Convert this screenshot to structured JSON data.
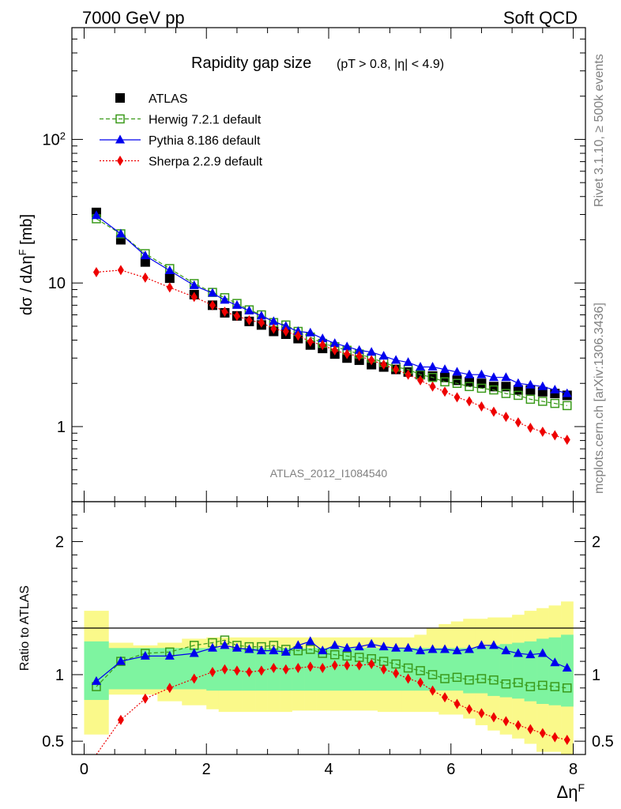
{
  "header": {
    "left": "7000 GeV pp",
    "right": "Soft QCD"
  },
  "side_labels": {
    "rivet": "Rivet 3.1.10, ≥ 500k events",
    "mcplots": "mcplots.cern.ch [arXiv:1306.3436]"
  },
  "watermark": "ATLAS_2012_I1084540",
  "colors": {
    "atlas": "#000000",
    "herwig": "#3a9a1a",
    "pythia": "#0000ee",
    "sherpa": "#ee0000",
    "band_inner": "#7ef4a0",
    "band_outer": "#faf98a"
  },
  "chart_data": [
    {
      "type": "scatter",
      "title": "Rapidity gap size",
      "subtitle": "(pT > 0.8, |η| < 4.9)",
      "ylabel": "dσ / dΔη^F [mb]",
      "yscale": "log",
      "ylim": [
        0.3,
        600
      ],
      "xlim": [
        -0.2,
        8.2
      ],
      "yticks": [
        "1",
        "10",
        "10^2"
      ],
      "legend_position": "top-left",
      "x": [
        0.2,
        0.6,
        1.0,
        1.4,
        1.8,
        2.1,
        2.3,
        2.5,
        2.7,
        2.9,
        3.1,
        3.3,
        3.5,
        3.7,
        3.9,
        4.1,
        4.3,
        4.5,
        4.7,
        4.9,
        5.1,
        5.3,
        5.5,
        5.7,
        5.9,
        6.1,
        6.3,
        6.5,
        6.7,
        6.9,
        7.1,
        7.3,
        7.5,
        7.7,
        7.9
      ],
      "series": [
        {
          "name": "ATLAS",
          "marker": "square-filled",
          "values": [
            31,
            20,
            14,
            10.8,
            8.3,
            7.0,
            6.2,
            5.9,
            5.4,
            5.1,
            4.6,
            4.4,
            4.1,
            3.7,
            3.5,
            3.2,
            3.0,
            2.9,
            2.7,
            2.6,
            2.5,
            2.4,
            2.3,
            2.25,
            2.2,
            2.1,
            2.05,
            2.0,
            1.9,
            1.9,
            1.8,
            1.8,
            1.75,
            1.7,
            1.65
          ]
        },
        {
          "name": "Herwig 7.2.1 default",
          "marker": "square-open",
          "line": "dashed",
          "values": [
            28,
            22,
            16,
            12.6,
            9.9,
            8.6,
            7.9,
            7.2,
            6.5,
            6.0,
            5.3,
            5.1,
            4.6,
            4.2,
            3.8,
            3.6,
            3.4,
            3.2,
            3.0,
            2.8,
            2.6,
            2.5,
            2.3,
            2.2,
            2.05,
            2.0,
            1.9,
            1.85,
            1.8,
            1.7,
            1.65,
            1.55,
            1.5,
            1.45,
            1.4
          ]
        },
        {
          "name": "Pythia 8.186 default",
          "marker": "triangle-filled",
          "line": "solid",
          "values": [
            29.5,
            22,
            15.5,
            12.2,
            9.6,
            8.5,
            7.6,
            7.0,
            6.4,
            5.9,
            5.4,
            5.0,
            4.6,
            4.5,
            4.1,
            3.8,
            3.6,
            3.4,
            3.3,
            3.1,
            2.9,
            2.8,
            2.6,
            2.6,
            2.5,
            2.4,
            2.3,
            2.3,
            2.2,
            2.2,
            2.0,
            1.95,
            1.9,
            1.8,
            1.7
          ]
        },
        {
          "name": "Sherpa 2.2.9 default",
          "marker": "diamond-filled",
          "line": "dotted",
          "values": [
            11.9,
            12.3,
            10.9,
            9.3,
            8.0,
            7.0,
            6.3,
            5.9,
            5.5,
            5.3,
            4.8,
            4.6,
            4.3,
            3.9,
            3.7,
            3.4,
            3.2,
            3.1,
            2.9,
            2.7,
            2.5,
            2.3,
            2.1,
            1.9,
            1.75,
            1.6,
            1.5,
            1.38,
            1.27,
            1.17,
            1.07,
            0.98,
            0.92,
            0.87,
            0.81
          ]
        }
      ]
    },
    {
      "type": "scatter",
      "ylabel": "Ratio to ATLAS",
      "xlabel": "Δη^F",
      "ylim": [
        0.4,
        2.3
      ],
      "xlim": [
        -0.2,
        8.2
      ],
      "xticks": [
        "0",
        "2",
        "4",
        "6",
        "8"
      ],
      "yticks": [
        "0.5",
        "1",
        "2"
      ],
      "bands": {
        "edges": [
          0,
          0.4,
          0.8,
          1.2,
          1.6,
          2.0,
          2.2,
          2.4,
          2.6,
          2.8,
          3.0,
          3.2,
          3.4,
          3.6,
          3.8,
          4.0,
          4.2,
          4.4,
          4.6,
          4.8,
          5.0,
          5.2,
          5.4,
          5.6,
          5.8,
          6.0,
          6.2,
          6.4,
          6.6,
          6.8,
          7.0,
          7.2,
          7.4,
          7.6,
          7.8,
          8.0
        ],
        "inner_lo": [
          0.81,
          0.89,
          0.89,
          0.89,
          0.89,
          0.88,
          0.88,
          0.88,
          0.88,
          0.88,
          0.88,
          0.88,
          0.88,
          0.88,
          0.88,
          0.88,
          0.88,
          0.88,
          0.88,
          0.88,
          0.88,
          0.88,
          0.88,
          0.88,
          0.88,
          0.88,
          0.86,
          0.86,
          0.84,
          0.83,
          0.82,
          0.8,
          0.78,
          0.77,
          0.76
        ],
        "inner_hi": [
          1.25,
          1.2,
          1.2,
          1.2,
          1.2,
          1.2,
          1.2,
          1.2,
          1.2,
          1.2,
          1.2,
          1.2,
          1.2,
          1.2,
          1.2,
          1.2,
          1.2,
          1.2,
          1.2,
          1.2,
          1.2,
          1.2,
          1.2,
          1.2,
          1.2,
          1.2,
          1.2,
          1.21,
          1.22,
          1.23,
          1.24,
          1.25,
          1.27,
          1.28,
          1.3
        ],
        "outer_lo": [
          0.55,
          0.85,
          0.85,
          0.8,
          0.77,
          0.74,
          0.72,
          0.72,
          0.72,
          0.72,
          0.72,
          0.72,
          0.73,
          0.73,
          0.73,
          0.73,
          0.73,
          0.73,
          0.73,
          0.72,
          0.72,
          0.72,
          0.72,
          0.72,
          0.7,
          0.7,
          0.67,
          0.62,
          0.58,
          0.55,
          0.52,
          0.48,
          0.42,
          0.42,
          0.4
        ],
        "outer_hi": [
          1.48,
          1.24,
          1.22,
          1.24,
          1.27,
          1.28,
          1.28,
          1.28,
          1.28,
          1.28,
          1.28,
          1.28,
          1.28,
          1.28,
          1.28,
          1.28,
          1.28,
          1.28,
          1.28,
          1.28,
          1.28,
          1.28,
          1.3,
          1.35,
          1.38,
          1.4,
          1.42,
          1.42,
          1.43,
          1.43,
          1.45,
          1.48,
          1.5,
          1.52,
          1.55
        ]
      },
      "x": [
        0.2,
        0.6,
        1.0,
        1.4,
        1.8,
        2.1,
        2.3,
        2.5,
        2.7,
        2.9,
        3.1,
        3.3,
        3.5,
        3.7,
        3.9,
        4.1,
        4.3,
        4.5,
        4.7,
        4.9,
        5.1,
        5.3,
        5.5,
        5.7,
        5.9,
        6.1,
        6.3,
        6.5,
        6.7,
        6.9,
        7.1,
        7.3,
        7.5,
        7.7,
        7.9
      ],
      "series": [
        {
          "name": "Herwig 7.2.1 default",
          "marker": "square-open",
          "line": "dashed",
          "values": [
            0.91,
            1.1,
            1.16,
            1.17,
            1.22,
            1.24,
            1.26,
            1.22,
            1.21,
            1.21,
            1.22,
            1.19,
            1.18,
            1.19,
            1.16,
            1.15,
            1.14,
            1.13,
            1.12,
            1.1,
            1.08,
            1.05,
            1.03,
            1.0,
            0.97,
            0.98,
            0.96,
            0.97,
            0.96,
            0.93,
            0.94,
            0.91,
            0.92,
            0.91,
            0.9
          ]
        },
        {
          "name": "Pythia 8.186 default",
          "marker": "triangle-filled",
          "line": "solid",
          "values": [
            0.95,
            1.1,
            1.14,
            1.14,
            1.16,
            1.2,
            1.22,
            1.2,
            1.19,
            1.18,
            1.18,
            1.17,
            1.22,
            1.25,
            1.18,
            1.22,
            1.2,
            1.21,
            1.23,
            1.21,
            1.2,
            1.2,
            1.18,
            1.19,
            1.19,
            1.18,
            1.19,
            1.22,
            1.22,
            1.18,
            1.16,
            1.15,
            1.16,
            1.09,
            1.05
          ]
        },
        {
          "name": "Sherpa 2.2.9 default",
          "marker": "diamond-filled",
          "line": "dotted",
          "values": [
            0.32,
            0.66,
            0.82,
            0.9,
            0.97,
            1.02,
            1.04,
            1.03,
            1.02,
            1.03,
            1.05,
            1.04,
            1.05,
            1.06,
            1.05,
            1.07,
            1.07,
            1.07,
            1.08,
            1.04,
            1.01,
            0.97,
            0.94,
            0.88,
            0.83,
            0.78,
            0.74,
            0.71,
            0.68,
            0.65,
            0.62,
            0.59,
            0.56,
            0.53,
            0.51
          ]
        }
      ]
    }
  ]
}
